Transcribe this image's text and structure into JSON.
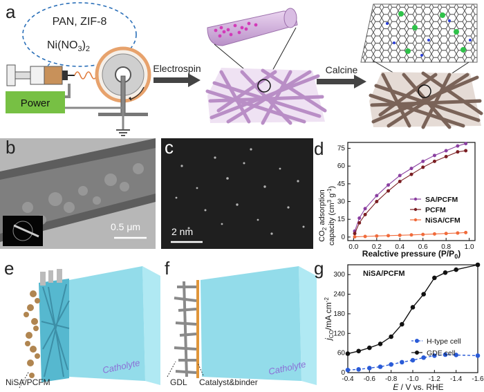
{
  "panels": {
    "a": "a",
    "b": "b",
    "c": "c",
    "d": "d",
    "e": "e",
    "f": "f",
    "g": "g"
  },
  "panel_a": {
    "bubble_line1": "PAN, ZIF-8",
    "bubble_line2": "Ni(NO",
    "bubble_sub": "3",
    "bubble_close": ")",
    "bubble_sub2": "2",
    "power": "Power",
    "step1": "Electrospin",
    "step2": "Calcine",
    "colors": {
      "power_green": "#77c044",
      "fiber_purple": "#b98ec6",
      "fiber_brown": "#7a6358",
      "ni_atom": "#2fc24a"
    }
  },
  "panel_b": {
    "scale": "0.5 μm"
  },
  "panel_c": {
    "scale": "2 nm"
  },
  "panel_e": {
    "label": "NiSA/PCFM",
    "electrolyte": "Catholyte"
  },
  "panel_f": {
    "label1": "GDL",
    "label2": "Catalyst&binder",
    "electrolyte": "Catholyte"
  },
  "chart_data": [
    {
      "type": "line",
      "panel": "d",
      "ylabel_line1": "CO",
      "ylabel_sub": "2",
      "ylabel_rest": " adsorption",
      "ylabel_line2": "capacity (cm",
      "ylabel_sup": "3",
      "ylabel_g": " g",
      "ylabel_sup2": "-1",
      "ylabel_end": ")",
      "xlabel": "Realctive pressure (P/P",
      "xlabel_sub": "0",
      "xlabel_end": ")",
      "xlim": [
        -0.05,
        1.05
      ],
      "ylim": [
        -3,
        80
      ],
      "xticks": [
        "0.0",
        "0.2",
        "0.4",
        "0.6",
        "0.8",
        "1.0"
      ],
      "yticks": [
        "0",
        "15",
        "30",
        "45",
        "60",
        "75"
      ],
      "legend_position": "center-right",
      "series": [
        {
          "name": "SA/PCFM",
          "color": "#8a3fa0",
          "x": [
            0.01,
            0.05,
            0.1,
            0.2,
            0.3,
            0.4,
            0.5,
            0.6,
            0.7,
            0.8,
            0.9,
            0.97
          ],
          "y": [
            5,
            16,
            24,
            35,
            44,
            52,
            58,
            64,
            69,
            73,
            77,
            79
          ]
        },
        {
          "name": "PCFM",
          "color": "#7a1e22",
          "x": [
            0.01,
            0.05,
            0.1,
            0.2,
            0.3,
            0.4,
            0.5,
            0.6,
            0.7,
            0.8,
            0.9,
            0.97
          ],
          "y": [
            3,
            12,
            19,
            30,
            39,
            47,
            53,
            59,
            64,
            68,
            72,
            73
          ]
        },
        {
          "name": "NiSA/CFM",
          "color": "#f06a3a",
          "x": [
            0.01,
            0.1,
            0.2,
            0.3,
            0.4,
            0.5,
            0.6,
            0.7,
            0.8,
            0.9,
            0.97
          ],
          "y": [
            0.2,
            0.5,
            0.9,
            1.2,
            1.5,
            1.8,
            2.2,
            2.6,
            3.0,
            3.4,
            3.8
          ]
        }
      ]
    },
    {
      "type": "line",
      "panel": "g",
      "inset_title": "NiSA/PCFM",
      "ylabel": "j",
      "ylabel_sub": "CO",
      "ylabel_rest": "/mA cm",
      "ylabel_sup": "-2",
      "xlabel_e": "E",
      "xlabel_rest": " / V vs. RHE",
      "xlim": [
        -0.4,
        -1.6
      ],
      "ylim": [
        0,
        330
      ],
      "xticks": [
        "-0.4",
        "-0.6",
        "-0.8",
        "-1.0",
        "-1.2",
        "-1.4",
        "-1.6"
      ],
      "yticks": [
        "0",
        "60",
        "120",
        "180",
        "240",
        "300"
      ],
      "legend_position": "center-right",
      "series": [
        {
          "name": "H-type cell",
          "color": "#2a5bd7",
          "dashed": true,
          "x": [
            -0.4,
            -0.5,
            -0.6,
            -0.7,
            -0.8,
            -0.9,
            -1.0,
            -1.1,
            -1.2,
            -1.3,
            -1.4,
            -1.6
          ],
          "y": [
            8,
            10,
            14,
            18,
            25,
            32,
            38,
            46,
            52,
            55,
            54,
            52
          ]
        },
        {
          "name": "GDE cell",
          "color": "#111111",
          "dashed": false,
          "x": [
            -0.4,
            -0.5,
            -0.6,
            -0.7,
            -0.8,
            -0.9,
            -1.0,
            -1.1,
            -1.2,
            -1.3,
            -1.4,
            -1.6
          ],
          "y": [
            58,
            66,
            76,
            88,
            110,
            148,
            200,
            240,
            290,
            306,
            315,
            330
          ]
        }
      ]
    }
  ]
}
